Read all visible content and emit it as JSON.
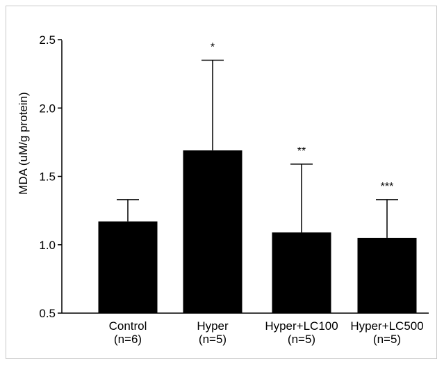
{
  "chart_data": {
    "type": "bar",
    "title": "",
    "xlabel": "",
    "ylabel": "MDA (uM/g protein)",
    "ylim": [
      0.5,
      2.6
    ],
    "yticks": [
      {
        "value": 0.5,
        "label": "0.5"
      },
      {
        "value": 1.0,
        "label": "1.0"
      },
      {
        "value": 1.5,
        "label": "1.5"
      },
      {
        "value": 2.0,
        "label": "2.0"
      },
      {
        "value": 2.5,
        "label": "2.5"
      }
    ],
    "categories": [
      "Control",
      "Hyper",
      "Hyper+LC100",
      "Hyper+LC500"
    ],
    "sample_sizes": [
      "(n=6)",
      "(n=5)",
      "(n=5)",
      "(n=5)"
    ],
    "values": [
      1.17,
      1.69,
      1.09,
      1.05
    ],
    "error_upper": [
      1.33,
      2.35,
      1.59,
      1.33
    ],
    "significance": [
      "",
      "*",
      "**",
      "***"
    ],
    "bar_color": "#000000",
    "grid": false,
    "legend": "none"
  }
}
